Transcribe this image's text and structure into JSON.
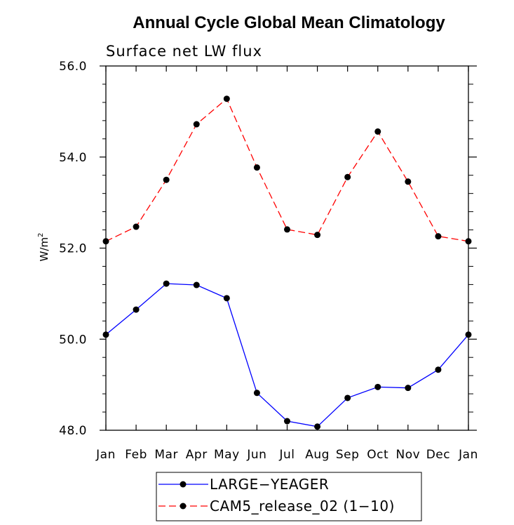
{
  "chart_data": {
    "type": "line",
    "title": "Annual Cycle Global Mean Climatology",
    "subtitle": "Surface net LW flux",
    "xlabel": "",
    "ylabel": "W/m",
    "ylabel_superscript": "2",
    "categories": [
      "Jan",
      "Feb",
      "Mar",
      "Apr",
      "May",
      "Jun",
      "Jul",
      "Aug",
      "Sep",
      "Oct",
      "Nov",
      "Dec",
      "Jan"
    ],
    "ylim": [
      48.0,
      56.0
    ],
    "yticks": [
      "48.0",
      "50.0",
      "52.0",
      "54.0",
      "56.0"
    ],
    "series": [
      {
        "name": "LARGE−YEAGER",
        "color": "#0000ff",
        "dash": "solid",
        "values": [
          50.1,
          50.65,
          51.22,
          51.19,
          50.9,
          48.82,
          48.2,
          48.08,
          48.71,
          48.95,
          48.93,
          49.33,
          50.1
        ]
      },
      {
        "name": "CAM5_release_02 (1−10)",
        "color": "#ff0000",
        "dash": "dashed",
        "values": [
          52.15,
          52.47,
          53.5,
          54.72,
          55.28,
          53.77,
          52.41,
          52.29,
          53.56,
          54.56,
          53.46,
          52.26,
          52.15
        ]
      }
    ],
    "legend_position": "bottom-center",
    "grid": false
  }
}
